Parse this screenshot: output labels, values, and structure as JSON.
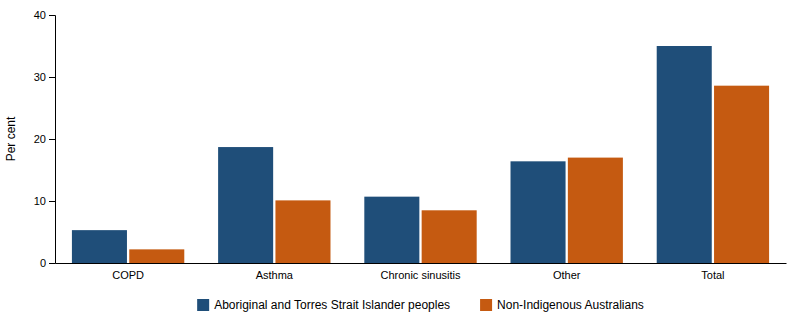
{
  "chart_data": {
    "type": "bar",
    "categories": [
      "COPD",
      "Asthma",
      "Chronic sinusitis",
      "Other",
      "Total"
    ],
    "series": [
      {
        "name": "Aboriginal and Torres Strait Islander peoples",
        "color": "#1F4E79",
        "values": [
          5.3,
          18.7,
          10.7,
          16.4,
          35.0
        ]
      },
      {
        "name": "Non-Indigenous Australians",
        "color": "#C55A11",
        "values": [
          2.2,
          10.1,
          8.5,
          17.0,
          28.6
        ]
      }
    ],
    "ylabel": "Per cent",
    "ylim": [
      0,
      40
    ],
    "yticks": [
      0,
      10,
      20,
      30,
      40
    ],
    "grid": false,
    "legend": "bottom"
  }
}
